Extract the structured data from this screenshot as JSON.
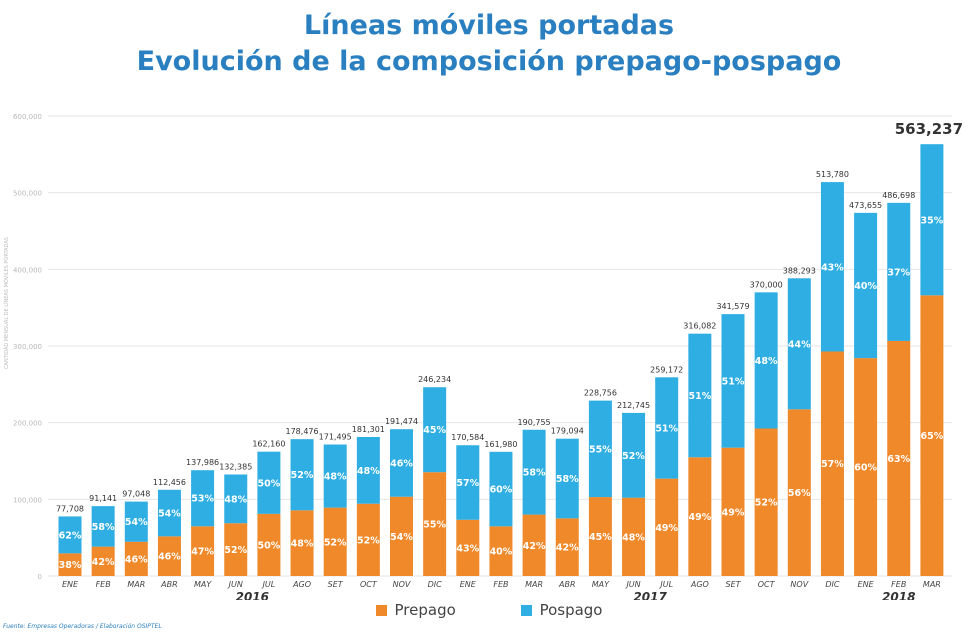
{
  "title": "Líneas móviles portadas",
  "subtitle": "Evolución de la composición prepago-pospago",
  "source_note": "Fuente: Empresas Operadoras / Elaboración OSIPTEL",
  "chart_data": {
    "type": "bar",
    "stacked": true,
    "title": "Líneas móviles portadas",
    "subtitle": "Evolución de la composición prepago-pospago",
    "ylabel": "CANTIDAD MENSUAL DE LÍNEAS MÓVILES PORTADAS",
    "xlabel": "",
    "ylim": [
      0,
      600000
    ],
    "yticks": [
      0,
      100000,
      200000,
      300000,
      400000,
      500000,
      600000
    ],
    "ytick_labels": [
      "0",
      "100,000",
      "200,000",
      "300,000",
      "400,000",
      "500,000",
      "600,000"
    ],
    "categories": [
      "ENE",
      "FEB",
      "MAR",
      "ABR",
      "MAY",
      "JUN",
      "JUL",
      "AGO",
      "SET",
      "OCT",
      "NOV",
      "DIC",
      "ENE",
      "FEB",
      "MAR",
      "ABR",
      "MAY",
      "JUN",
      "JUL",
      "AGO",
      "SET",
      "OCT",
      "NOV",
      "DIC",
      "ENE",
      "FEB",
      "MAR"
    ],
    "year_groups": [
      {
        "label": "2016",
        "start": 0,
        "end": 11
      },
      {
        "label": "2017",
        "start": 12,
        "end": 23
      },
      {
        "label": "2018",
        "start": 24,
        "end": 26
      }
    ],
    "totals": [
      77708,
      91141,
      97048,
      112456,
      137986,
      132385,
      162160,
      178476,
      171495,
      181301,
      191474,
      246234,
      170584,
      161980,
      190755,
      179094,
      228756,
      212745,
      259172,
      316082,
      341579,
      370000,
      388293,
      513780,
      473655,
      486698,
      563237
    ],
    "total_labels": [
      "77,708",
      "91,141",
      "97,048",
      "112,456",
      "137,986",
      "132,385",
      "162,160",
      "178,476",
      "171,495",
      "181,301",
      "191,474",
      "246,234",
      "170,584",
      "161,980",
      "190,755",
      "179,094",
      "228,756",
      "212,745",
      "259,172",
      "316,082",
      "341,579",
      "370,000",
      "388,293",
      "513,780",
      "473,655",
      "486,698",
      "563,237"
    ],
    "series": [
      {
        "name": "Prepago",
        "color": "#f0892a",
        "percent": [
          38,
          42,
          46,
          46,
          47,
          52,
          50,
          48,
          52,
          52,
          54,
          55,
          43,
          40,
          42,
          42,
          45,
          48,
          49,
          49,
          49,
          52,
          56,
          57,
          60,
          63,
          65
        ],
        "percent_labels": [
          "38%",
          "42%",
          "46%",
          "46%",
          "47%",
          "52%",
          "50%",
          "48%",
          "52%",
          "52%",
          "54%",
          "55%",
          "43%",
          "40%",
          "42%",
          "42%",
          "45%",
          "48%",
          "49%",
          "49%",
          "49%",
          "52%",
          "56%",
          "57%",
          "60%",
          "63%",
          "65%"
        ]
      },
      {
        "name": "Pospago",
        "color": "#2eaee2",
        "percent": [
          62,
          58,
          54,
          54,
          53,
          48,
          50,
          52,
          48,
          48,
          46,
          45,
          57,
          60,
          58,
          58,
          55,
          52,
          51,
          51,
          51,
          48,
          44,
          43,
          40,
          37,
          35
        ],
        "percent_labels": [
          "62%",
          "58%",
          "54%",
          "54%",
          "53%",
          "48%",
          "50%",
          "52%",
          "48%",
          "48%",
          "46%",
          "45%",
          "57%",
          "60%",
          "58%",
          "58%",
          "55%",
          "52%",
          "51%",
          "51%",
          "51%",
          "48%",
          "44%",
          "43%",
          "40%",
          "37%",
          "35%"
        ]
      }
    ],
    "legend": [
      "Prepago",
      "Pospago"
    ],
    "legend_position": "bottom-center",
    "grid": true
  }
}
